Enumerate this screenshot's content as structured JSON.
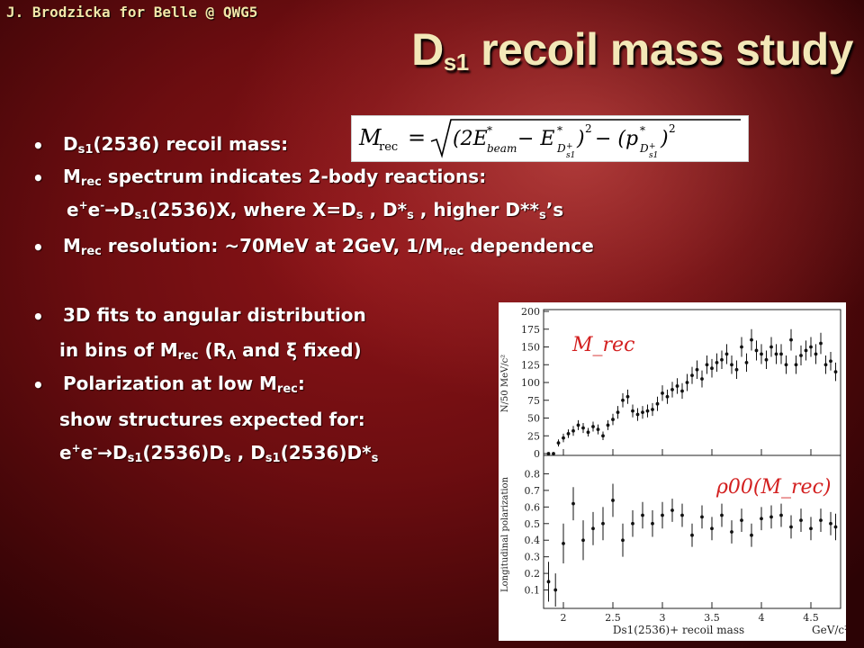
{
  "header": {
    "credit": "J. Brodzicka for Belle @ QWG5",
    "title_main": "D",
    "title_sub": "s1",
    "title_rest": " recoil mass study"
  },
  "bullets": {
    "b1": {
      "p1": "D",
      "s1": "s1",
      "p2": "(2536) recoil mass:"
    },
    "b2": {
      "p1": "M",
      "s1": "rec",
      "p2": " spectrum indicates 2-body reactions:"
    },
    "b2cont": {
      "p1": "e",
      "sup1": "+",
      "p2": "e",
      "sup2": "-",
      "arrow": "→",
      "p3": "D",
      "s1": "s1",
      "p4": "(2536)X, where X=D",
      "s2": "s",
      "p5": " , D*",
      "s3": "s",
      "p6": " , higher D**",
      "s4": "s",
      "p7": "’s"
    },
    "b3": {
      "p1": "M",
      "s1": "rec",
      "p2": " resolution: ~70MeV at 2GeV,  1/M",
      "s2": "rec",
      "p3": " dependence"
    },
    "b4": {
      "p1": "3D fits to angular distribution"
    },
    "b4cont": {
      "p1": "in bins of M",
      "s1": "rec",
      "p2": " (R",
      "s2": "Λ",
      "p3": " and ξ fixed)"
    },
    "b5": {
      "p1": "Polarization at low M",
      "s1": "rec",
      "p2": ":"
    },
    "b5cont1": {
      "p1": "show structures expected for:"
    },
    "b5cont2": {
      "p1": "e",
      "sup1": "+",
      "p2": "e",
      "sup2": "-",
      "arrow": "→",
      "p3": "D",
      "s1": "s1",
      "p4": "(2536)D",
      "s2": "s",
      "p5": " , D",
      "s3": "s1",
      "p6": "(2536)D*",
      "s4": "s"
    }
  },
  "formula": {
    "lhs": "M",
    "lhs_sub": "rec",
    "eq": "=",
    "rhs_a": "(2E",
    "rhs_a_sup": "*",
    "rhs_a_sub": "beam",
    "rhs_b": " − E",
    "rhs_b_sup": "*",
    "rhs_b_sub": "D",
    "rhs_b_subsub": "+",
    "rhs_b_subsub2": "s1",
    "rhs_c": ")",
    "rhs_c_sup": "2",
    "rhs_d": " − (p",
    "rhs_d_sup": "*",
    "rhs_d_sub": "D",
    "rhs_d_subsub": "+",
    "rhs_d_subsub2": "s1",
    "rhs_e": ")",
    "rhs_e_sup": "2"
  },
  "chart_data": [
    {
      "type": "scatter",
      "title": "",
      "annotation": "M_rec",
      "ylabel": "N/50 MeV/c²",
      "xlabel": "",
      "xlim": [
        1.8,
        4.8
      ],
      "ylim": [
        0,
        200
      ],
      "yticks": [
        0,
        25,
        50,
        75,
        100,
        125,
        150,
        175,
        200
      ],
      "series": [
        {
          "x": [
            1.85,
            1.9,
            1.95,
            2.0,
            2.05,
            2.1,
            2.15,
            2.2,
            2.25,
            2.3,
            2.35,
            2.4,
            2.45,
            2.5,
            2.55,
            2.6,
            2.65,
            2.7,
            2.75,
            2.8,
            2.85,
            2.9,
            2.95,
            3.0,
            3.05,
            3.1,
            3.15,
            3.2,
            3.25,
            3.3,
            3.35,
            3.4,
            3.45,
            3.5,
            3.55,
            3.6,
            3.65,
            3.7,
            3.75,
            3.8,
            3.85,
            3.9,
            3.95,
            4.0,
            4.05,
            4.1,
            4.15,
            4.2,
            4.25,
            4.3,
            4.35,
            4.4,
            4.45,
            4.5,
            4.55,
            4.6,
            4.65,
            4.7,
            4.75
          ],
          "y": [
            0,
            0,
            15,
            22,
            28,
            32,
            40,
            36,
            30,
            38,
            34,
            25,
            40,
            48,
            58,
            75,
            80,
            60,
            55,
            58,
            60,
            62,
            70,
            85,
            80,
            90,
            95,
            88,
            100,
            110,
            118,
            105,
            125,
            120,
            128,
            132,
            140,
            125,
            118,
            150,
            128,
            160,
            145,
            140,
            132,
            150,
            140,
            140,
            125,
            160,
            125,
            138,
            145,
            150,
            140,
            155,
            125,
            130,
            115
          ],
          "err": [
            0,
            0,
            5,
            6,
            6,
            7,
            7,
            7,
            6,
            7,
            7,
            6,
            7,
            8,
            9,
            10,
            10,
            9,
            9,
            9,
            9,
            9,
            10,
            11,
            10,
            11,
            11,
            11,
            12,
            12,
            13,
            12,
            13,
            13,
            13,
            13,
            14,
            13,
            13,
            14,
            13,
            15,
            14,
            14,
            13,
            14,
            14,
            14,
            13,
            15,
            13,
            14,
            14,
            14,
            14,
            15,
            13,
            13,
            13
          ]
        }
      ]
    },
    {
      "type": "scatter",
      "title": "",
      "annotation": "ρ00(M_rec)",
      "ylabel": "Longitudinal polarization",
      "xlabel": "Ds1(2536)+ recoil mass",
      "xunit": "GeV/c²",
      "xlim": [
        1.8,
        4.8
      ],
      "ylim": [
        0,
        0.9
      ],
      "yticks": [
        0.1,
        0.2,
        0.3,
        0.4,
        0.5,
        0.6,
        0.7,
        0.8
      ],
      "xticks": [
        2,
        2.5,
        3,
        3.5,
        4,
        4.5
      ],
      "series": [
        {
          "x": [
            1.85,
            1.92,
            2.0,
            2.1,
            2.2,
            2.3,
            2.4,
            2.5,
            2.6,
            2.7,
            2.8,
            2.9,
            3.0,
            3.1,
            3.2,
            3.3,
            3.4,
            3.5,
            3.6,
            3.7,
            3.8,
            3.9,
            4.0,
            4.1,
            4.2,
            4.3,
            4.4,
            4.5,
            4.6,
            4.7,
            4.75
          ],
          "y": [
            0.15,
            0.1,
            0.38,
            0.62,
            0.4,
            0.47,
            0.5,
            0.64,
            0.4,
            0.5,
            0.55,
            0.5,
            0.55,
            0.58,
            0.55,
            0.43,
            0.54,
            0.47,
            0.55,
            0.45,
            0.52,
            0.43,
            0.53,
            0.54,
            0.55,
            0.48,
            0.52,
            0.47,
            0.52,
            0.5,
            0.48
          ],
          "err": [
            0.12,
            0.1,
            0.12,
            0.1,
            0.12,
            0.1,
            0.1,
            0.1,
            0.1,
            0.08,
            0.08,
            0.08,
            0.08,
            0.07,
            0.07,
            0.07,
            0.07,
            0.07,
            0.07,
            0.07,
            0.07,
            0.07,
            0.07,
            0.07,
            0.07,
            0.07,
            0.07,
            0.07,
            0.07,
            0.07,
            0.08
          ]
        }
      ]
    }
  ]
}
